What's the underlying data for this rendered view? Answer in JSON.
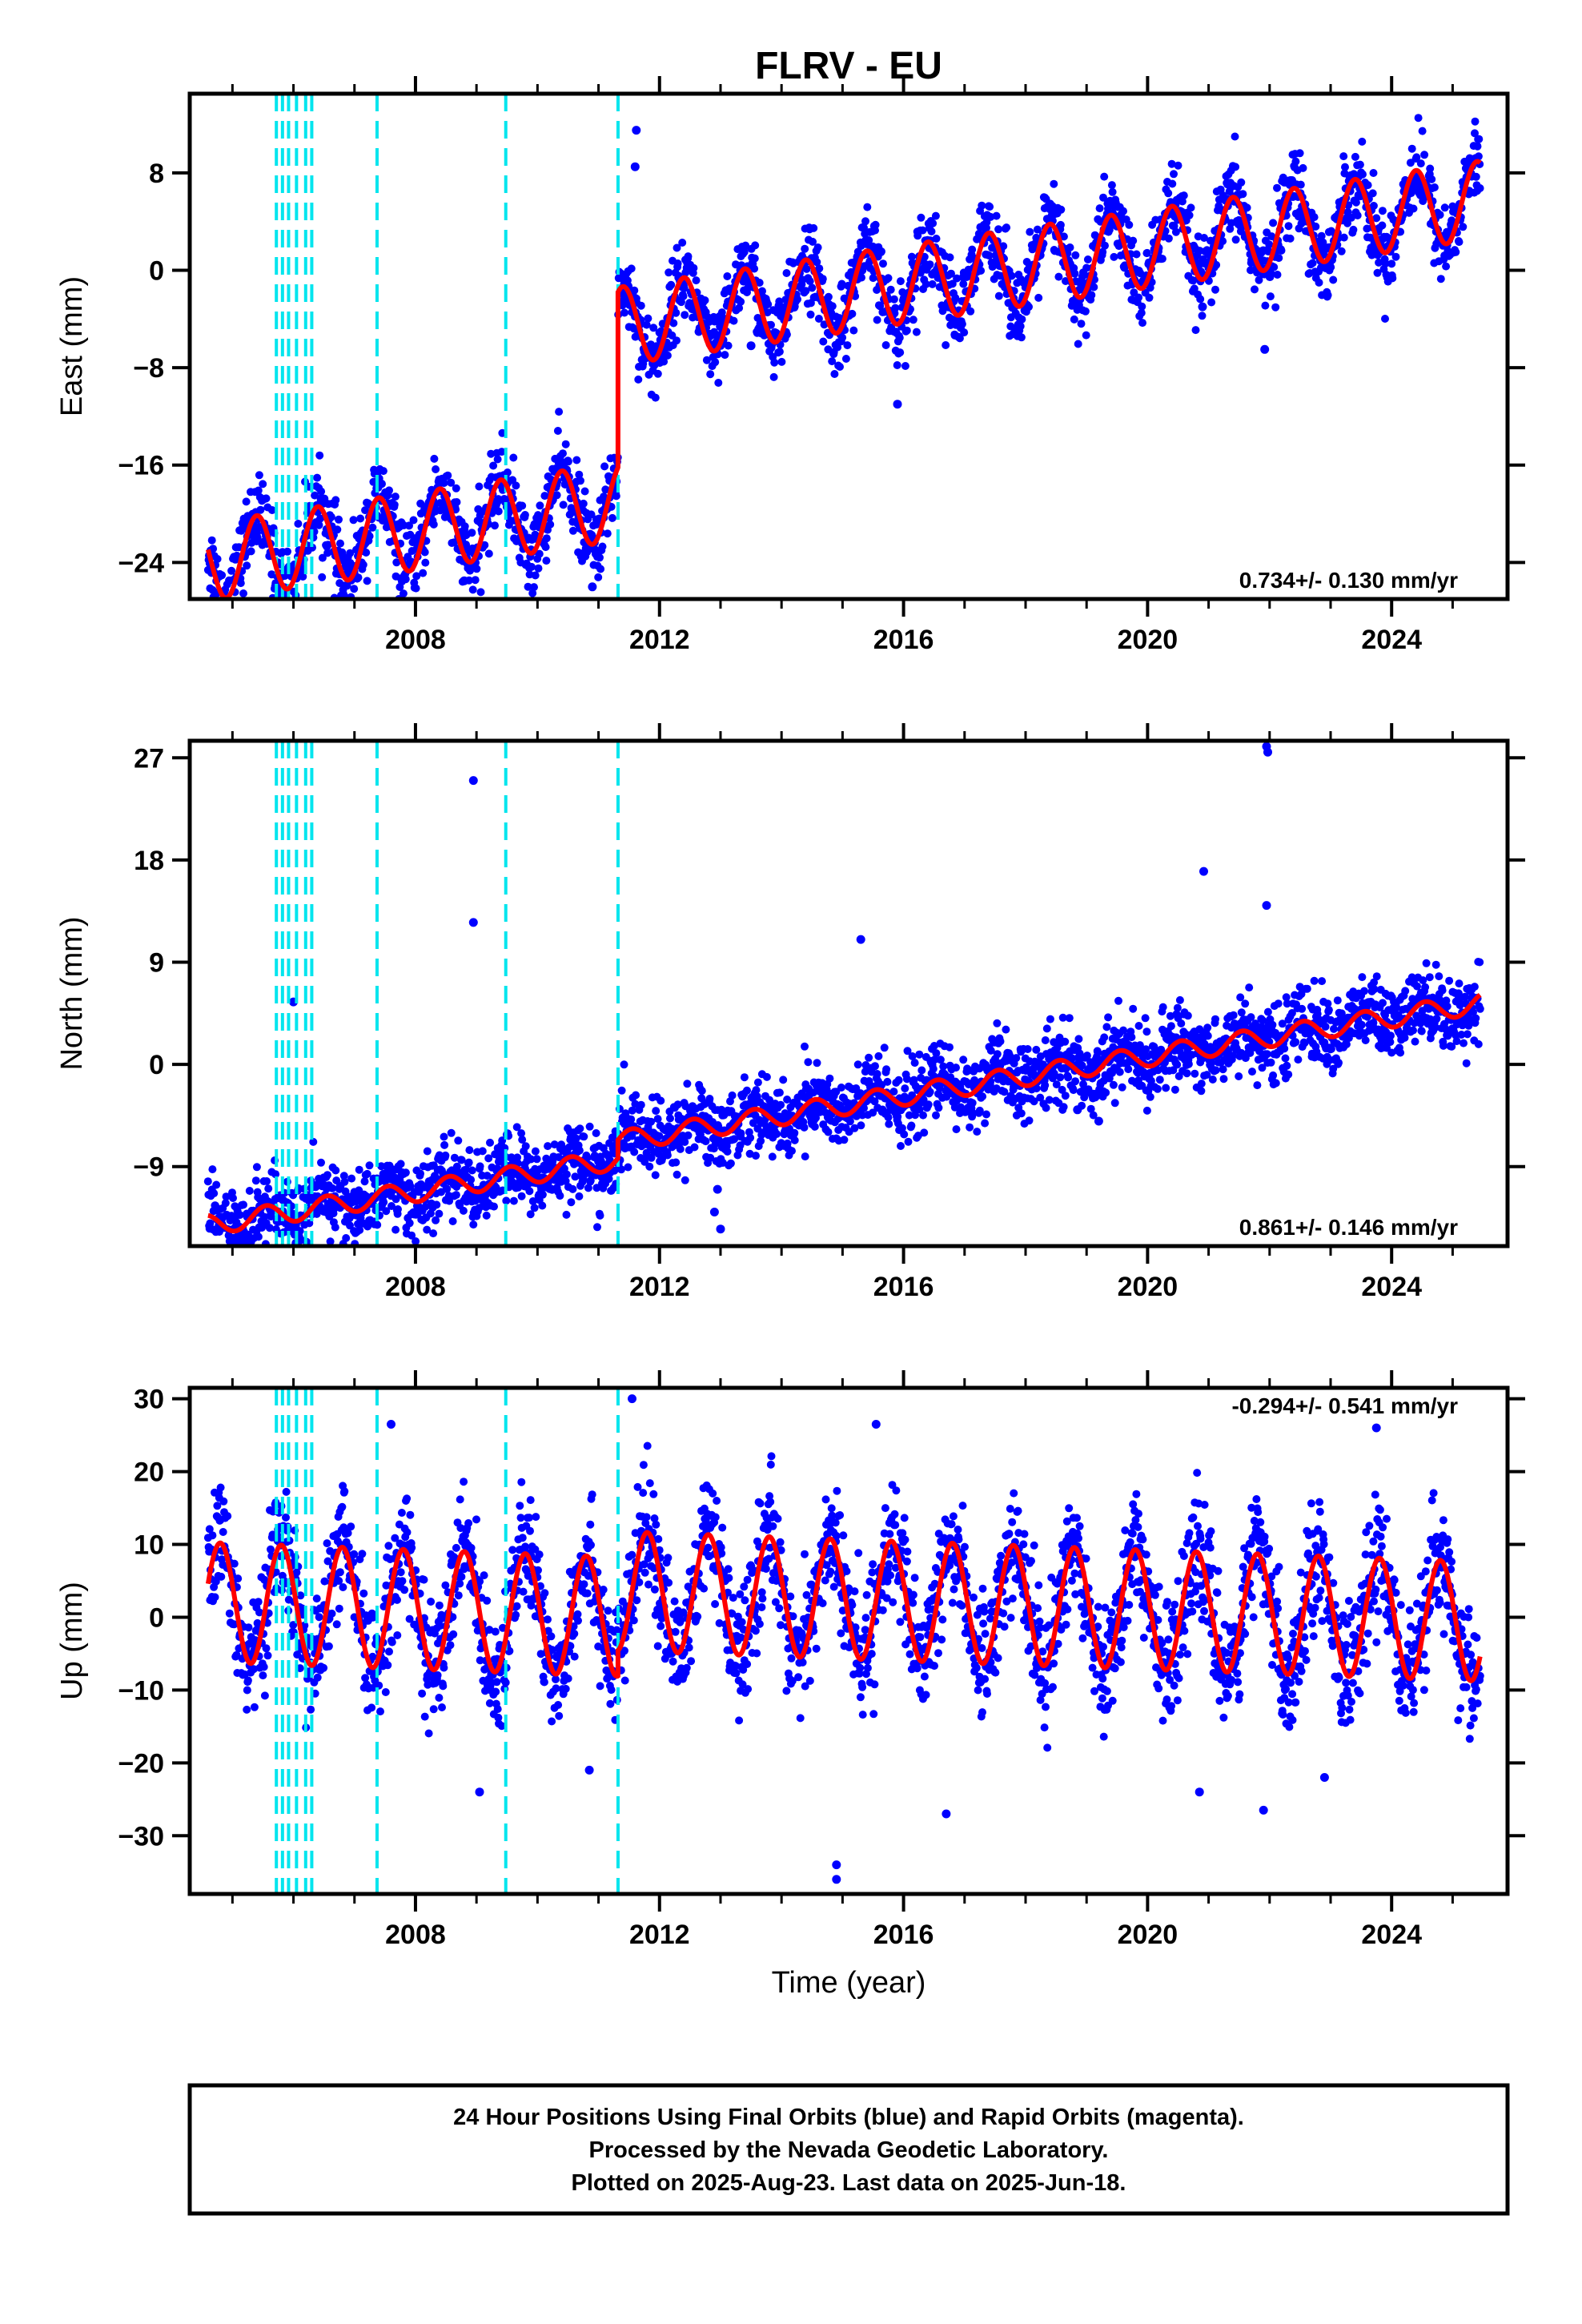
{
  "title": "FLRV - EU",
  "xlabel": "Time (year)",
  "footer": {
    "line1": "24 Hour Positions Using Final Orbits (blue) and Rapid Orbits (magenta).",
    "line2": "Processed by the Nevada Geodetic Laboratory.",
    "line3": "Plotted on 2025-Aug-23. Last data on 2025-Jun-18."
  },
  "colors": {
    "data": "#0000ff",
    "model": "#ff0000",
    "steps": "#00e5ee",
    "frame": "#000000"
  },
  "chart_data": [
    {
      "type": "scatter",
      "name": "east",
      "ylabel": "East (mm)",
      "rate_text": "0.734+/- 0.130 mm/yr",
      "xlim": [
        2004.3,
        2025.9
      ],
      "ylim": [
        -27,
        14.5
      ],
      "yticks": [
        8,
        0,
        -8,
        -16,
        -24
      ],
      "ytick_labels": [
        "8",
        "0",
        "−8",
        "−16",
        "−24"
      ],
      "xticks": [
        2008,
        2012,
        2016,
        2020,
        2024
      ],
      "xtick_labels": [
        "2008",
        "2012",
        "2016",
        "2020",
        "2024"
      ],
      "step_epochs": [
        2005.72,
        2005.82,
        2005.92,
        2006.05,
        2006.2,
        2006.3,
        2007.37,
        2009.48,
        2011.32
      ],
      "model": {
        "start": 2004.6,
        "end": 2025.45,
        "offset_before": -16.3,
        "offset_after": -1.9,
        "jump_epoch": 2011.32,
        "rate": 0.734,
        "amplitude": 3.2,
        "phase": 0.15
      },
      "noise": 1.6,
      "outliers": [
        [
          2011.62,
          11.5
        ],
        [
          2011.6,
          8.5
        ],
        [
          2015.9,
          -11
        ],
        [
          2021.92,
          -6.5
        ],
        [
          2010.95,
          -23
        ],
        [
          2010.9,
          -26
        ],
        [
          2006.0,
          -25
        ],
        [
          2008.8,
          -25.5
        ],
        [
          2013.5,
          -6.2
        ],
        [
          2020.9,
          -3
        ]
      ]
    },
    {
      "type": "scatter",
      "name": "north",
      "ylabel": "North (mm)",
      "rate_text": "0.861+/- 0.146 mm/yr",
      "xlim": [
        2004.3,
        2025.9
      ],
      "ylim": [
        -16,
        28.5
      ],
      "yticks": [
        27,
        18,
        9,
        0,
        -9
      ],
      "ytick_labels": [
        "27",
        "18",
        "9",
        "0",
        "−9"
      ],
      "xticks": [
        2008,
        2012,
        2016,
        2020,
        2024
      ],
      "xtick_labels": [
        "2008",
        "2012",
        "2016",
        "2020",
        "2024"
      ],
      "step_epochs": [
        2005.72,
        2005.82,
        2005.92,
        2006.05,
        2006.2,
        2006.3,
        2007.37,
        2009.48,
        2011.32
      ],
      "model": {
        "start": 2004.6,
        "end": 2025.45,
        "offset_before": -5.2,
        "offset_after": -3.6,
        "jump_epoch": 2011.32,
        "rate": 0.861,
        "amplitude": 0.9,
        "phase": 0.3
      },
      "noise": 1.6,
      "outliers": [
        [
          2008.95,
          25
        ],
        [
          2008.95,
          12.5
        ],
        [
          2021.95,
          28
        ],
        [
          2021.97,
          27.5
        ],
        [
          2020.92,
          17
        ],
        [
          2021.95,
          14
        ],
        [
          2012.95,
          -11
        ],
        [
          2012.9,
          -13
        ],
        [
          2013.0,
          -14.5
        ],
        [
          2015.3,
          11
        ],
        [
          2006.0,
          5.5
        ],
        [
          2010.95,
          -9.5
        ],
        [
          2019.2,
          -5
        ],
        [
          2018.85,
          -4
        ]
      ]
    },
    {
      "type": "scatter",
      "name": "up",
      "ylabel": "Up (mm)",
      "rate_text": "-0.294+/- 0.541 mm/yr",
      "xlim": [
        2004.3,
        2025.9
      ],
      "ylim": [
        -38,
        31.5
      ],
      "yticks": [
        30,
        20,
        10,
        0,
        -10,
        -20,
        -30
      ],
      "ytick_labels": [
        "30",
        "20",
        "10",
        "0",
        "−10",
        "−20",
        "−30"
      ],
      "xticks": [
        2008,
        2012,
        2016,
        2020,
        2024
      ],
      "xtick_labels": [
        "2008",
        "2012",
        "2016",
        "2020",
        "2024"
      ],
      "step_epochs": [
        2005.72,
        2005.82,
        2005.92,
        2006.05,
        2006.2,
        2006.3,
        2007.37,
        2009.48,
        2011.32
      ],
      "model": {
        "start": 2004.6,
        "end": 2025.45,
        "offset_before": -1.0,
        "offset_after": 2.5,
        "jump_epoch": 2011.32,
        "rate": -0.294,
        "amplitude": 8.2,
        "phase": 0.55
      },
      "noise": 4.0,
      "outliers": [
        [
          2011.55,
          30
        ],
        [
          2007.6,
          26.5
        ],
        [
          2015.55,
          26.5
        ],
        [
          2023.75,
          26
        ],
        [
          2014.9,
          -36
        ],
        [
          2014.9,
          -34
        ],
        [
          2020.85,
          -24
        ],
        [
          2009.05,
          -24
        ],
        [
          2016.7,
          -27
        ],
        [
          2021.9,
          -26.5
        ],
        [
          2022.9,
          -22
        ],
        [
          2010.85,
          -21
        ]
      ]
    }
  ]
}
